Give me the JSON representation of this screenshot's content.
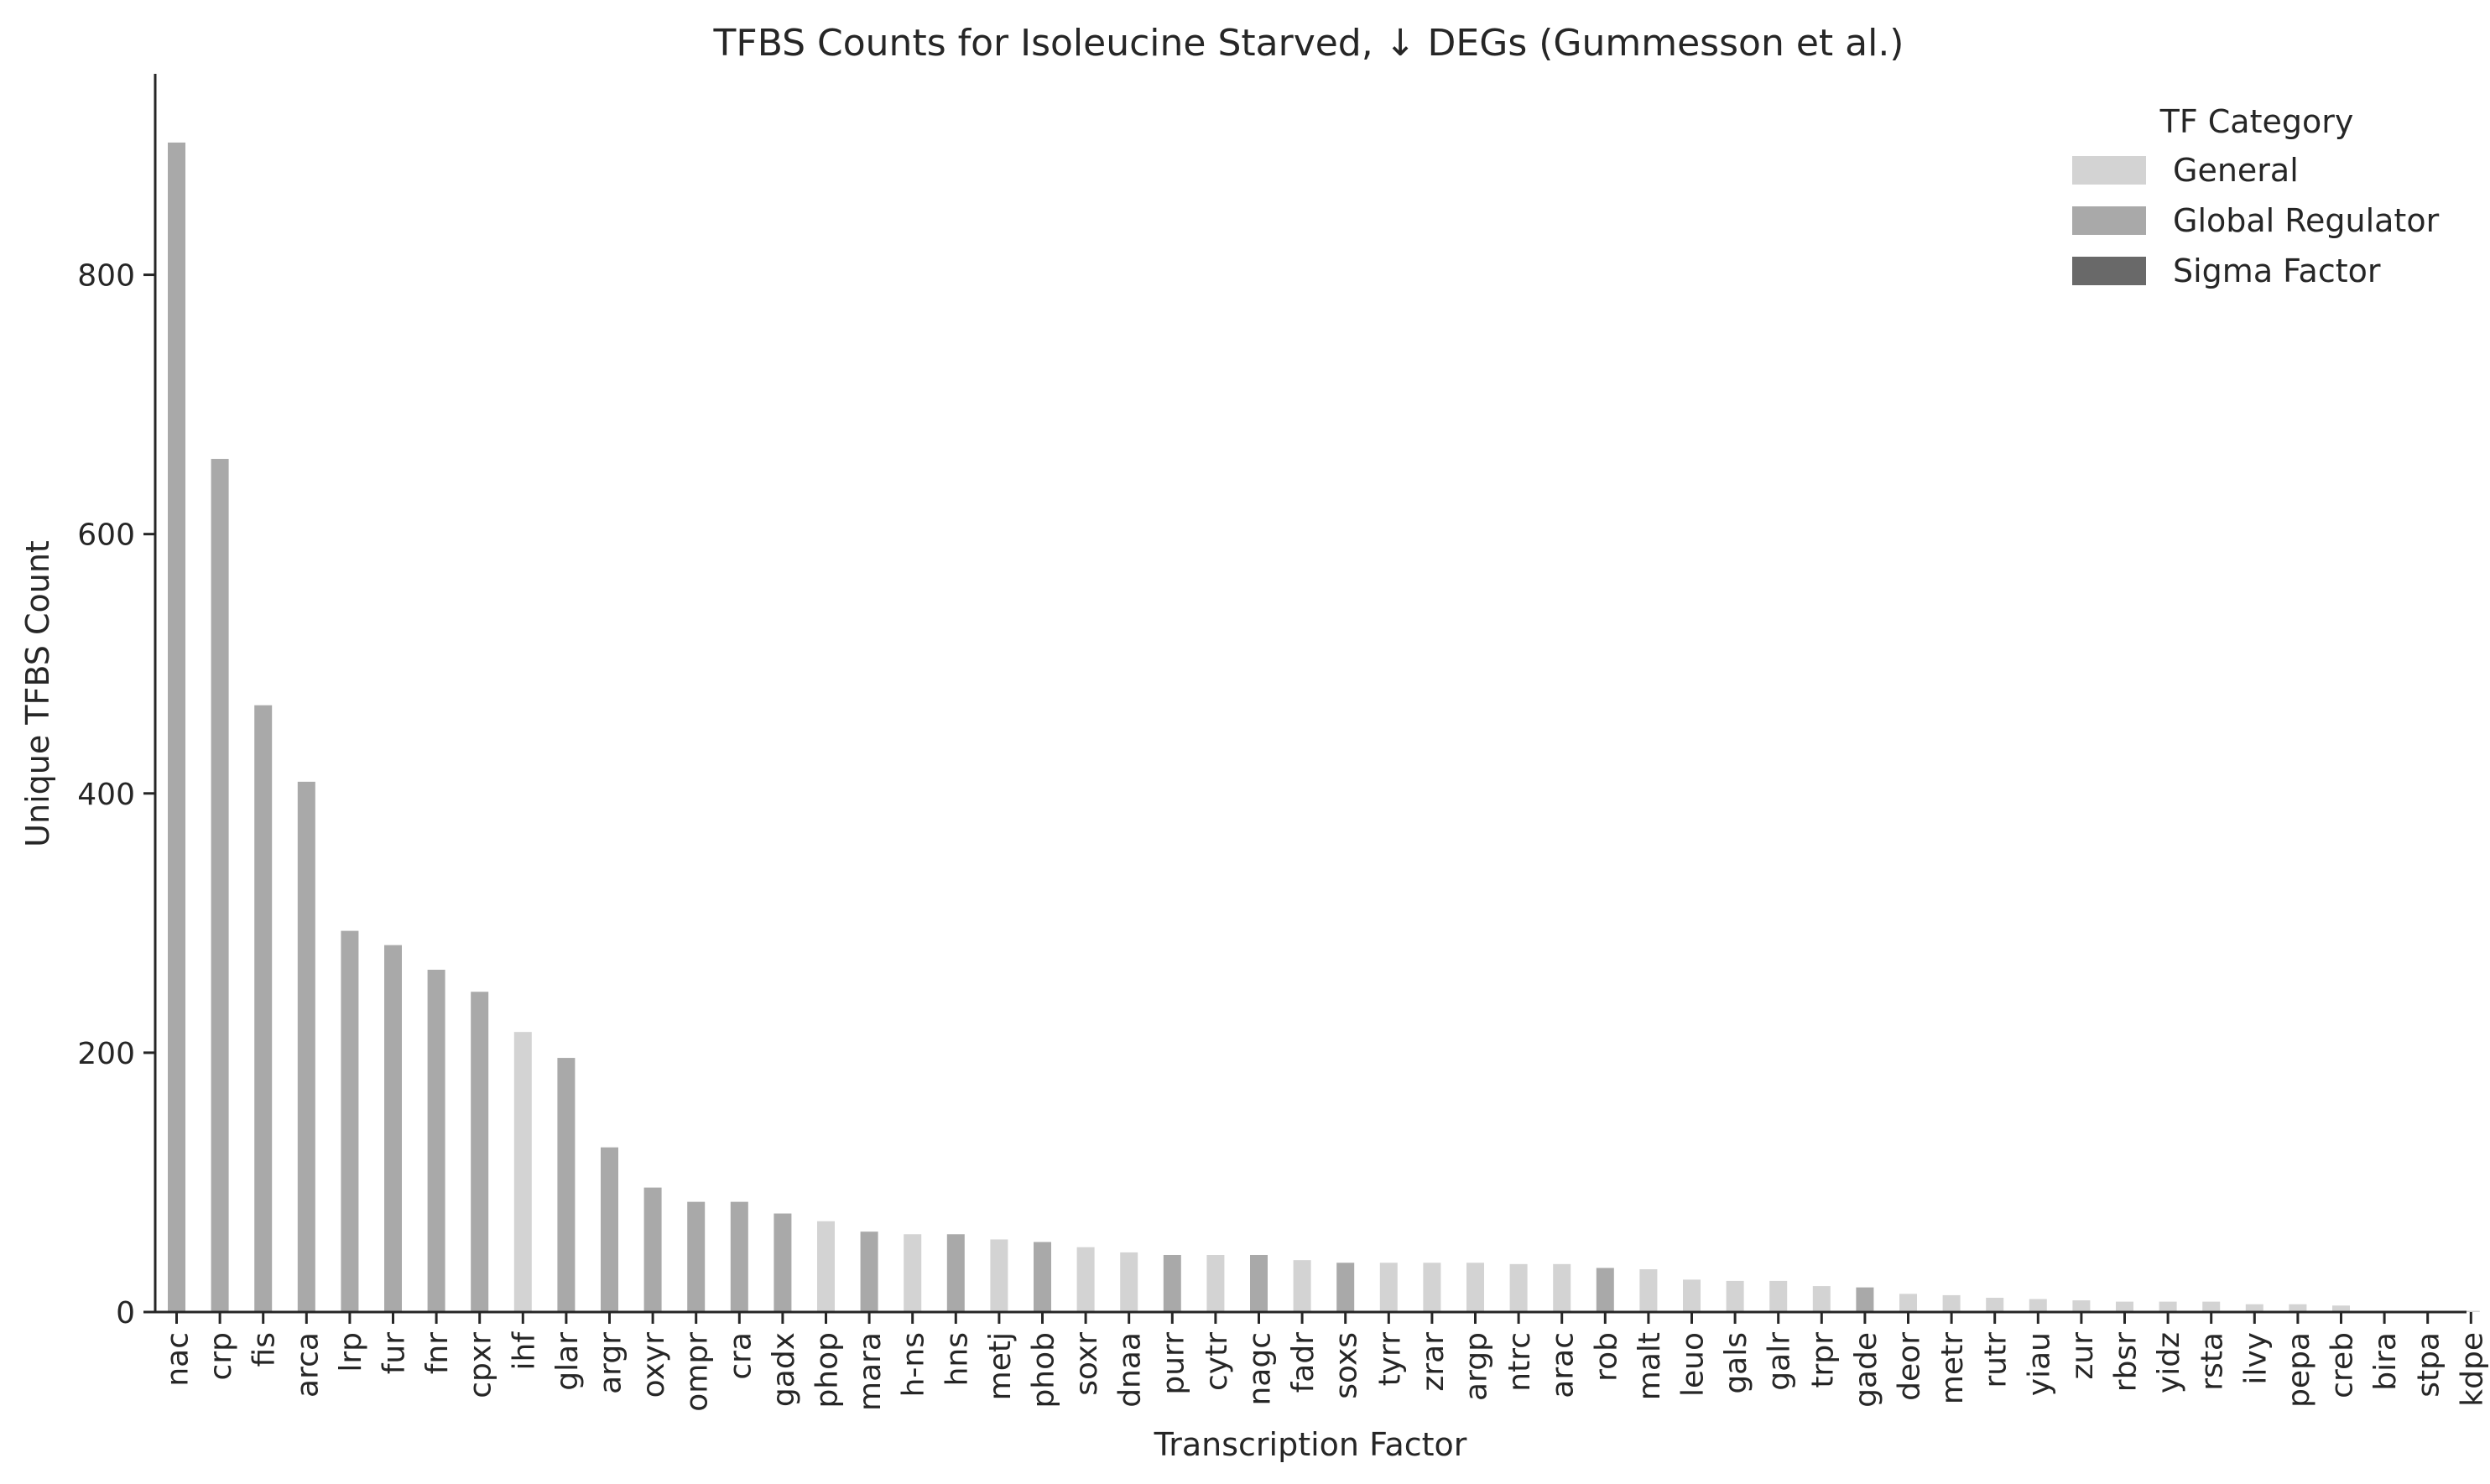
{
  "chart_data": {
    "type": "bar",
    "title": "TFBS Counts for Isoleucine Starved, ↓ DEGs (Gummesson et al.)",
    "xlabel": "Transcription Factor",
    "ylabel": "Unique TFBS Count",
    "ylim": [
      0,
      955
    ],
    "yticks": [
      0,
      200,
      400,
      600,
      800
    ],
    "grid": false,
    "legend": {
      "title": "TF Category",
      "placement": "top-right",
      "entries": [
        {
          "name": "General",
          "color": "#d3d3d3"
        },
        {
          "name": "Global Regulator",
          "color": "#a9a9a9"
        },
        {
          "name": "Sigma Factor",
          "color": "#696969"
        }
      ]
    },
    "categories": [
      "nac",
      "crp",
      "fis",
      "arca",
      "lrp",
      "fur",
      "fnr",
      "cpxr",
      "ihf",
      "glar",
      "argr",
      "oxyr",
      "ompr",
      "cra",
      "gadx",
      "phop",
      "mara",
      "h-ns",
      "hns",
      "metj",
      "phob",
      "soxr",
      "dnaa",
      "purr",
      "cytr",
      "nagc",
      "fadr",
      "soxs",
      "tyrr",
      "zrar",
      "argp",
      "ntrc",
      "arac",
      "rob",
      "malt",
      "leuo",
      "gals",
      "galr",
      "trpr",
      "gade",
      "deor",
      "metr",
      "rutr",
      "yiau",
      "zur",
      "rbsr",
      "yidz",
      "rsta",
      "ilvy",
      "pepa",
      "creb",
      "bira",
      "stpa",
      "kdpe"
    ],
    "values": [
      902,
      658,
      468,
      409,
      294,
      283,
      264,
      247,
      216,
      196,
      127,
      96,
      85,
      85,
      76,
      70,
      62,
      60,
      60,
      56,
      54,
      50,
      46,
      44,
      44,
      44,
      40,
      38,
      38,
      38,
      38,
      37,
      37,
      34,
      33,
      25,
      24,
      24,
      20,
      19,
      14,
      13,
      11,
      10,
      9,
      8,
      8,
      8,
      6,
      6,
      5,
      1,
      1,
      1
    ],
    "categories_of_bars": [
      "Global Regulator",
      "Global Regulator",
      "Global Regulator",
      "Global Regulator",
      "Global Regulator",
      "Global Regulator",
      "Global Regulator",
      "Global Regulator",
      "General",
      "Global Regulator",
      "Global Regulator",
      "Global Regulator",
      "Global Regulator",
      "Global Regulator",
      "Global Regulator",
      "General",
      "Global Regulator",
      "General",
      "Global Regulator",
      "General",
      "Global Regulator",
      "General",
      "General",
      "Global Regulator",
      "General",
      "Global Regulator",
      "General",
      "Global Regulator",
      "General",
      "General",
      "General",
      "General",
      "General",
      "Global Regulator",
      "General",
      "General",
      "General",
      "General",
      "General",
      "Global Regulator",
      "General",
      "General",
      "General",
      "General",
      "General",
      "General",
      "General",
      "General",
      "General",
      "General",
      "General",
      "General",
      "General",
      "General"
    ]
  }
}
